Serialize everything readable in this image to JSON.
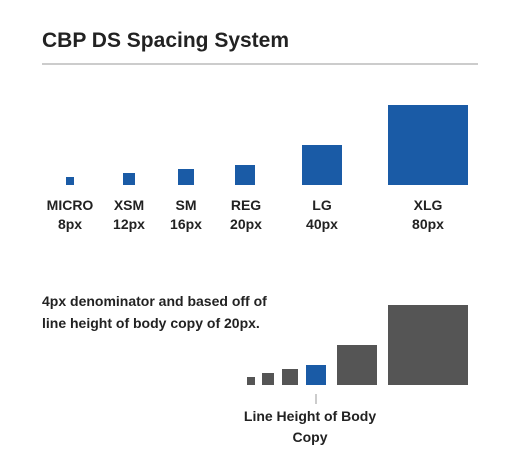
{
  "header": {
    "title": "CBP DS Spacing System"
  },
  "sizes": [
    {
      "name": "MICRO",
      "size": "8px"
    },
    {
      "name": "XSM",
      "size": "12px"
    },
    {
      "name": "SM",
      "size": "16px"
    },
    {
      "name": "REG",
      "size": "20px"
    },
    {
      "name": "LG",
      "size": "40px"
    },
    {
      "name": "XLG",
      "size": "80px"
    }
  ],
  "note": {
    "lines": [
      "4px denominator and based off of",
      "line height of body copy of 20px."
    ]
  },
  "callout": {
    "lines": [
      "Line Height of Body",
      "Copy"
    ]
  }
}
